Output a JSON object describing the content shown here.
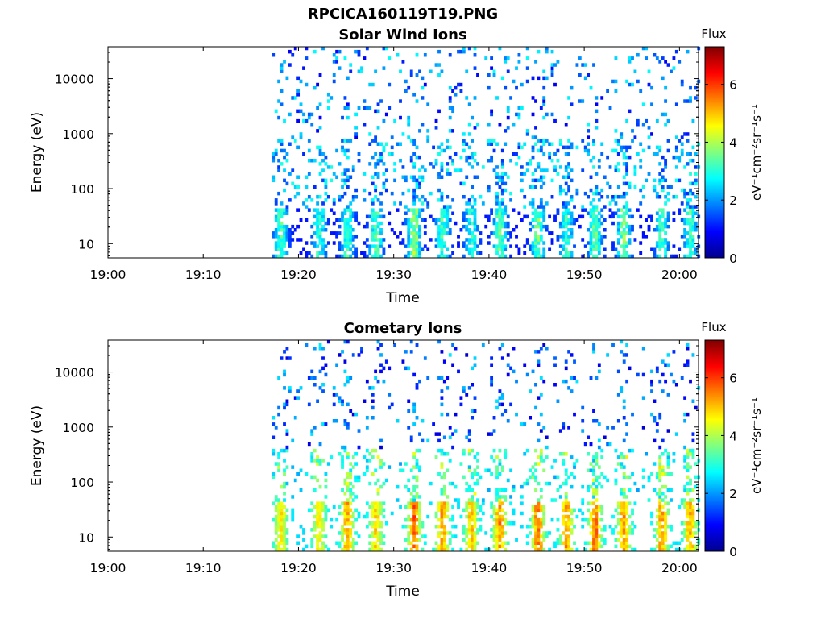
{
  "page_title": "RPCICA160119T19.PNG",
  "colorbar": {
    "title": "Flux",
    "label": "eV⁻¹cm⁻²sr⁻¹s⁻¹",
    "ticks": [
      "0",
      "2",
      "4",
      "6"
    ],
    "range": [
      0,
      7.3
    ],
    "colormap": "jet"
  },
  "chart_data": [
    {
      "type": "heatmap",
      "title": "Solar Wind Ions",
      "xlabel": "Time",
      "ylabel": "Energy (eV)",
      "x_ticks": [
        "19:00",
        "19:10",
        "19:20",
        "19:30",
        "19:40",
        "19:50",
        "20:00"
      ],
      "y_ticks": [
        "10",
        "100",
        "1000",
        "10000"
      ],
      "y_scale": "log",
      "xlim": [
        "19:00",
        "20:02"
      ],
      "ylim": [
        5.5,
        38000
      ],
      "data_start": "19:17",
      "grid": false,
      "bursts": [
        {
          "t": "19:18",
          "max_flux": 3.8
        },
        {
          "t": "19:22",
          "max_flux": 3.5
        },
        {
          "t": "19:25",
          "max_flux": 3.6
        },
        {
          "t": "19:28",
          "max_flux": 3.9
        },
        {
          "t": "19:32",
          "max_flux": 4.5
        },
        {
          "t": "19:35",
          "max_flux": 3.7
        },
        {
          "t": "19:38",
          "max_flux": 3.5
        },
        {
          "t": "19:41",
          "max_flux": 4.0
        },
        {
          "t": "19:45",
          "max_flux": 4.1
        },
        {
          "t": "19:48",
          "max_flux": 3.6
        },
        {
          "t": "19:51",
          "max_flux": 4.0
        },
        {
          "t": "19:54",
          "max_flux": 4.2
        },
        {
          "t": "19:58",
          "max_flux": 3.6
        },
        {
          "t": "20:01",
          "max_flux": 3.8
        }
      ]
    },
    {
      "type": "heatmap",
      "title": "Cometary Ions",
      "xlabel": "Time",
      "ylabel": "Energy (eV)",
      "x_ticks": [
        "19:00",
        "19:10",
        "19:20",
        "19:30",
        "19:40",
        "19:50",
        "20:00"
      ],
      "y_ticks": [
        "10",
        "100",
        "1000",
        "10000"
      ],
      "y_scale": "log",
      "xlim": [
        "19:00",
        "20:02"
      ],
      "ylim": [
        5.5,
        38000
      ],
      "data_start": "19:17",
      "grid": false,
      "bursts": [
        {
          "t": "19:18",
          "max_flux": 5.0
        },
        {
          "t": "19:22",
          "max_flux": 5.0
        },
        {
          "t": "19:25",
          "max_flux": 5.6
        },
        {
          "t": "19:28",
          "max_flux": 5.2
        },
        {
          "t": "19:32",
          "max_flux": 6.2
        },
        {
          "t": "19:35",
          "max_flux": 5.7
        },
        {
          "t": "19:38",
          "max_flux": 5.4
        },
        {
          "t": "19:41",
          "max_flux": 5.8
        },
        {
          "t": "19:45",
          "max_flux": 6.0
        },
        {
          "t": "19:48",
          "max_flux": 5.8
        },
        {
          "t": "19:51",
          "max_flux": 6.0
        },
        {
          "t": "19:54",
          "max_flux": 5.8
        },
        {
          "t": "19:58",
          "max_flux": 5.6
        },
        {
          "t": "20:01",
          "max_flux": 5.6
        }
      ]
    }
  ]
}
